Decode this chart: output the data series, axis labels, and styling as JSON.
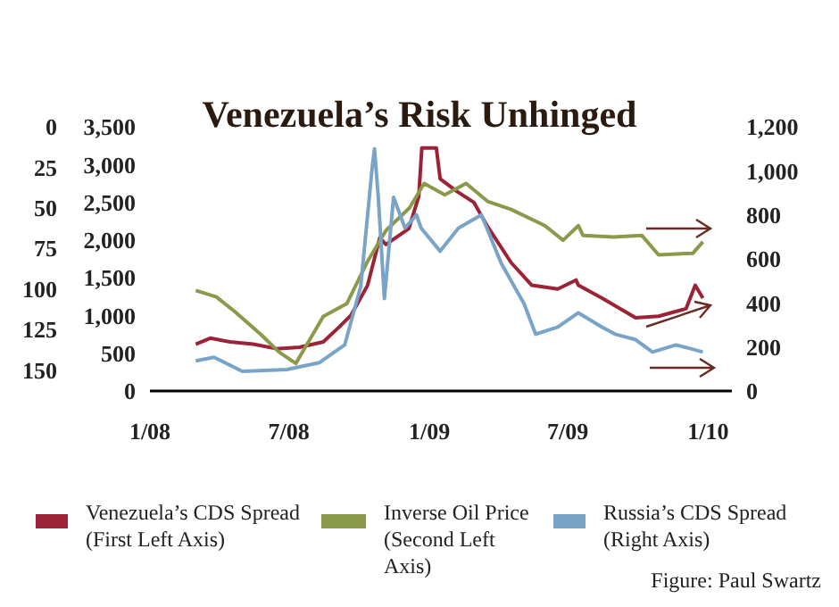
{
  "chart_data": {
    "type": "line",
    "title": "Venezuela’s Risk Unhinged",
    "annotations": [
      "Figure: Paul Swartz"
    ],
    "legend": "bottom",
    "marker": "none",
    "line_style": "solid",
    "xlim": [
      "2008-01-01",
      "2010-02-01"
    ],
    "xticks": [
      {
        "value": "2008-01-01",
        "label": "1/08"
      },
      {
        "value": "2008-07-01",
        "label": "7/08"
      },
      {
        "value": "2009-01-01",
        "label": "1/09"
      },
      {
        "value": "2009-07-01",
        "label": "7/09"
      },
      {
        "value": "2010-01-01",
        "label": "1/10"
      }
    ],
    "ylim": [
      0,
      3500
    ],
    "yticks": [
      {
        "value": 0,
        "label": "0"
      },
      {
        "value": 500,
        "label": "500"
      },
      {
        "value": 1000,
        "label": "1,000"
      },
      {
        "value": 1500,
        "label": "1,500"
      },
      {
        "value": 2000,
        "label": "2,000"
      },
      {
        "value": 2500,
        "label": "2,500"
      },
      {
        "value": 3000,
        "label": "3,000"
      },
      {
        "value": 3500,
        "label": "3,500"
      }
    ],
    "y2lim": [
      163,
      0
    ],
    "y2ticks": [
      0,
      25,
      50,
      75,
      100,
      125,
      150
    ],
    "y3lim": [
      0,
      1200
    ],
    "y3ticks": [
      {
        "value": 0,
        "label": "0"
      },
      {
        "value": 200,
        "label": "200"
      },
      {
        "value": 400,
        "label": "400"
      },
      {
        "value": 600,
        "label": "600"
      },
      {
        "value": 800,
        "label": "800"
      },
      {
        "value": 1000,
        "label": "1,000"
      },
      {
        "value": 1200,
        "label": "1,200"
      }
    ],
    "series": [
      {
        "name": "Venezuela’s CDS Spread (First Left Axis)",
        "color": "#9b2335",
        "x": [
          "2008-03-01",
          "2008-03-20",
          "2008-04-15",
          "2008-05-15",
          "2008-06-15",
          "2008-07-15",
          "2008-08-15",
          "2008-09-05",
          "2008-09-20",
          "2008-10-12",
          "2008-10-28",
          "2008-11-05",
          "2008-12-05",
          "2008-12-18",
          "2008-12-22",
          "2009-01-10",
          "2009-01-15",
          "2009-02-05",
          "2009-02-28",
          "2009-03-18",
          "2009-04-18",
          "2009-05-15",
          "2009-06-18",
          "2009-07-12",
          "2009-07-15",
          "2009-08-15",
          "2009-09-28",
          "2009-10-28",
          "2009-12-03",
          "2009-12-15",
          "2009-12-25"
        ],
        "values": [
          620,
          700,
          650,
          620,
          560,
          580,
          650,
          850,
          1000,
          1400,
          2030,
          1940,
          2150,
          2580,
          3220,
          3220,
          2810,
          2650,
          2500,
          2180,
          1700,
          1400,
          1350,
          1470,
          1400,
          1230,
          970,
          990,
          1090,
          1400,
          1230
        ]
      },
      {
        "name": "Inverse Oil Price (Second Left Axis)",
        "color": "#8a9a4a",
        "axis": "y2",
        "x": [
          "2008-03-01",
          "2008-03-28",
          "2008-04-21",
          "2008-05-25",
          "2008-06-18",
          "2008-07-10",
          "2008-07-25",
          "2008-08-15",
          "2008-09-15",
          "2008-10-12",
          "2008-11-05",
          "2008-12-06",
          "2008-12-25",
          "2009-01-21",
          "2009-02-18",
          "2009-03-18",
          "2009-04-18",
          "2009-06-01",
          "2009-06-25",
          "2009-07-15",
          "2009-07-21",
          "2009-08-30",
          "2009-10-06",
          "2009-10-28",
          "2009-12-12",
          "2009-12-25"
        ],
        "values": [
          101,
          105,
          114,
          128,
          139,
          146,
          134,
          117,
          109,
          83,
          64,
          50,
          35,
          42,
          35,
          46,
          51,
          61,
          70,
          61,
          67,
          68,
          67,
          79,
          78,
          71
        ]
      },
      {
        "name": "Russia’s CDS Spread (Right Axis)",
        "color": "#7aa3c8",
        "axis": "y3",
        "x": [
          "2008-03-01",
          "2008-03-25",
          "2008-05-01",
          "2008-06-28",
          "2008-08-10",
          "2008-09-12",
          "2008-10-03",
          "2008-10-18",
          "2008-10-21",
          "2008-10-26",
          "2008-11-03",
          "2008-11-15",
          "2008-11-30",
          "2008-12-15",
          "2008-12-21",
          "2009-01-15",
          "2009-02-08",
          "2009-03-10",
          "2009-04-05",
          "2009-05-05",
          "2009-05-20",
          "2009-06-18",
          "2009-07-15",
          "2009-08-15",
          "2009-09-01",
          "2009-09-28",
          "2009-10-20",
          "2009-11-20",
          "2009-12-08",
          "2009-12-25"
        ],
        "values": [
          137,
          153,
          89,
          97,
          129,
          209,
          475,
          1015,
          1100,
          880,
          420,
          880,
          740,
          800,
          740,
          635,
          740,
          800,
          580,
          395,
          258,
          290,
          355,
          290,
          258,
          233,
          177,
          209,
          193,
          177
        ]
      }
    ]
  }
}
